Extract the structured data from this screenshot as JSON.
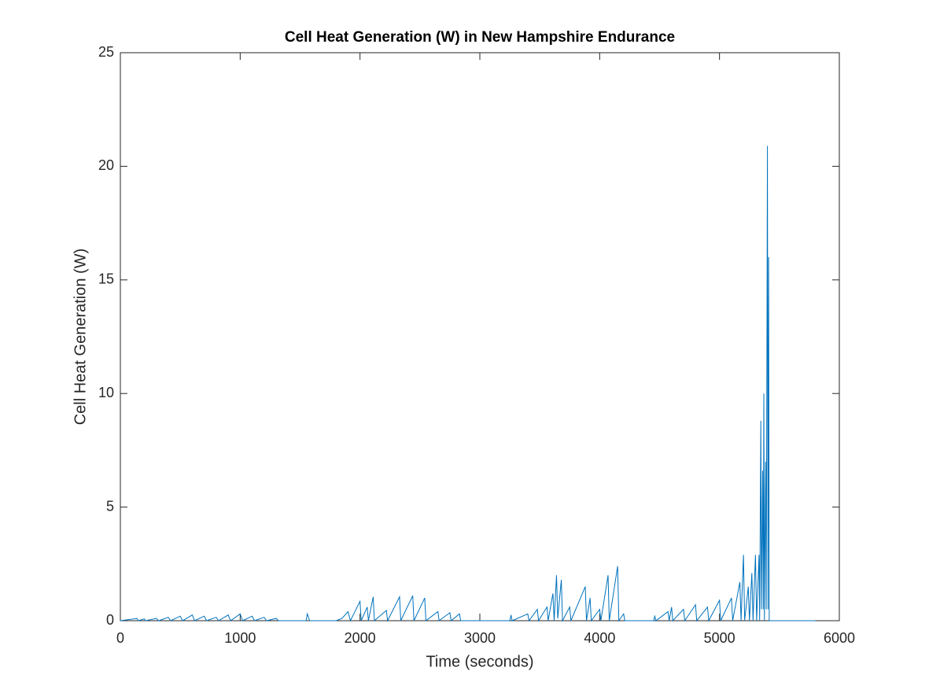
{
  "chart_data": {
    "type": "line",
    "title": "Cell Heat Generation (W) in New Hampshire Endurance",
    "x_label": "Time (seconds)",
    "y_label": "Cell Heat Generation (W)",
    "xlim": [
      0,
      6000
    ],
    "ylim": [
      0,
      25
    ],
    "xticks": [
      0,
      1000,
      2000,
      3000,
      4000,
      5000,
      6000
    ],
    "yticks": [
      0,
      5,
      10,
      15,
      20,
      25
    ],
    "series": [
      {
        "color": "#0072BD",
        "x": [
          0,
          140,
          150,
          200,
          210,
          300,
          320,
          400,
          420,
          500,
          520,
          600,
          620,
          700,
          720,
          800,
          820,
          900,
          920,
          1000,
          1020,
          1100,
          1120,
          1200,
          1220,
          1300,
          1320,
          1550,
          1560,
          1580,
          1800,
          1850,
          1900,
          1920,
          2000,
          2010,
          2060,
          2070,
          2110,
          2120,
          2220,
          2230,
          2330,
          2340,
          2440,
          2450,
          2540,
          2550,
          2650,
          2660,
          2750,
          2760,
          2830,
          2840,
          3250,
          3260,
          3270,
          3400,
          3410,
          3480,
          3490,
          3560,
          3570,
          3610,
          3620,
          3640,
          3650,
          3680,
          3690,
          3750,
          3760,
          3880,
          3890,
          3920,
          3930,
          4000,
          4010,
          4070,
          4080,
          4150,
          4160,
          4200,
          4210,
          4450,
          4460,
          4470,
          4570,
          4580,
          4600,
          4610,
          4700,
          4710,
          4800,
          4810,
          4900,
          4910,
          5000,
          5010,
          5100,
          5110,
          5170,
          5180,
          5200,
          5210,
          5240,
          5250,
          5270,
          5280,
          5300,
          5310,
          5330,
          5335,
          5345,
          5350,
          5360,
          5365,
          5370,
          5375,
          5385,
          5390,
          5400,
          5405,
          5410,
          5415,
          5450,
          5800
        ],
        "values": [
          0,
          0.1,
          0,
          0.08,
          0,
          0.1,
          0,
          0.15,
          0,
          0.2,
          0,
          0.25,
          0,
          0.2,
          0,
          0.15,
          0,
          0.25,
          0,
          0.3,
          0,
          0.2,
          0,
          0.15,
          0,
          0.1,
          0,
          0,
          0.3,
          0,
          0,
          0.1,
          0.4,
          0,
          0.85,
          0,
          0.6,
          0,
          1.05,
          0,
          0.45,
          0,
          1.05,
          0,
          1.1,
          0,
          1.0,
          0,
          0.4,
          0,
          0.35,
          0,
          0.3,
          0,
          0,
          0.25,
          0,
          0.3,
          0,
          0.5,
          0,
          0.6,
          0,
          1.2,
          0,
          2.0,
          0.1,
          1.8,
          0,
          0.6,
          0,
          1.5,
          0,
          1.0,
          0,
          0.5,
          0,
          2.0,
          0,
          2.4,
          0,
          0.3,
          0,
          0,
          0.2,
          0,
          0.4,
          0,
          0.6,
          0,
          0.5,
          0,
          0.7,
          0,
          0.6,
          0,
          0.9,
          0,
          1.0,
          0,
          1.7,
          0,
          2.9,
          0,
          1.5,
          0,
          2.1,
          0,
          2.9,
          0,
          2.9,
          0,
          8.8,
          0.5,
          6.6,
          0.5,
          10.0,
          0,
          7.0,
          0.5,
          20.9,
          0.5,
          16,
          0,
          0,
          0
        ]
      }
    ]
  }
}
